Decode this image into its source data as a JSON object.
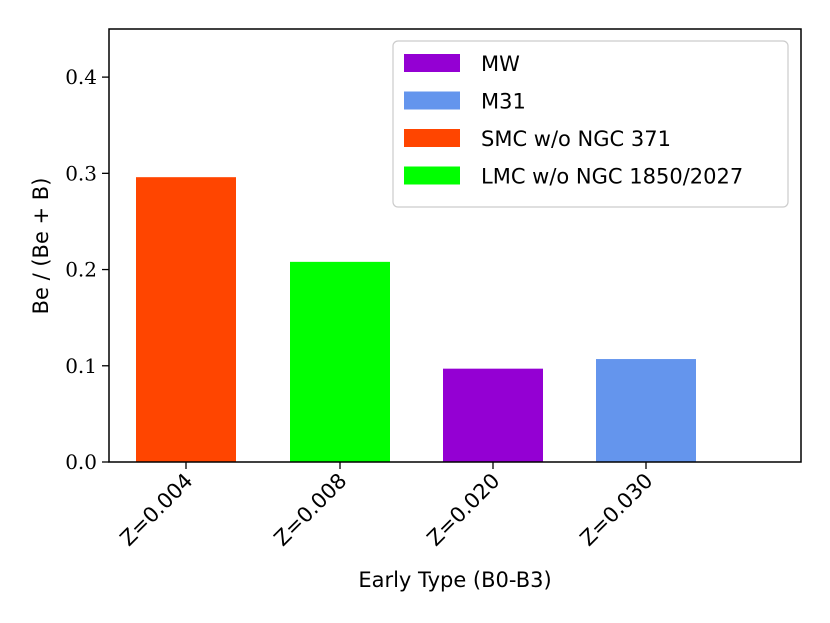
{
  "chart_data": {
    "type": "bar",
    "categories": [
      "Z=0.004",
      "Z=0.008",
      "Z=0.020",
      "Z=0.030"
    ],
    "values": [
      0.296,
      0.208,
      0.097,
      0.107
    ],
    "bar_series": [
      "SMC w/o NGC 371",
      "LMC w/o NGC 1850/2027",
      "MW",
      "M31"
    ],
    "xlabel": "Early Type (B0-B3)",
    "ylabel": "Be / (Be + B)",
    "ylim": [
      0,
      0.45
    ],
    "yticks": [
      0.0,
      0.1,
      0.2,
      0.3,
      0.4
    ],
    "ytick_labels": [
      "0.0",
      "0.1",
      "0.2",
      "0.3",
      "0.4"
    ],
    "grid": false,
    "legend_position": "upper right",
    "legend": [
      {
        "name": "MW",
        "color": "#9400D3"
      },
      {
        "name": "M31",
        "color": "#6495ED"
      },
      {
        "name": "SMC w/o NGC 371",
        "color": "#FF4500"
      },
      {
        "name": "LMC w/o NGC 1850/2027",
        "color": "#00FF00"
      }
    ],
    "colors": {
      "SMC w/o NGC 371": "#FF4500",
      "LMC w/o NGC 1850/2027": "#00FF00",
      "MW": "#9400D3",
      "M31": "#6495ED"
    }
  }
}
